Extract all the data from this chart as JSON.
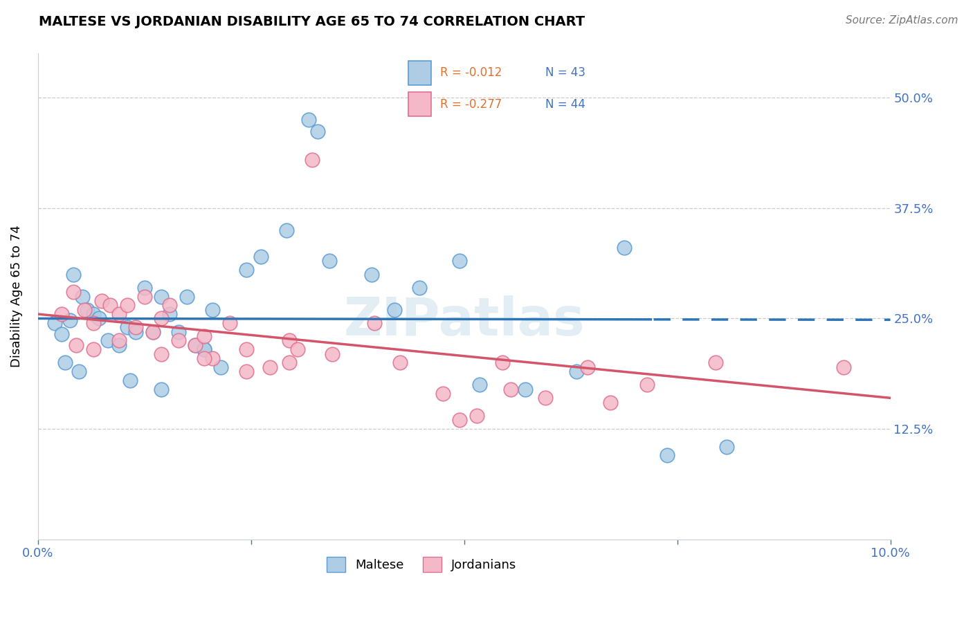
{
  "title": "MALTESE VS JORDANIAN DISABILITY AGE 65 TO 74 CORRELATION CHART",
  "source": "Source: ZipAtlas.com",
  "ylabel": "Disability Age 65 to 74",
  "xlim": [
    0.0,
    10.0
  ],
  "ylim": [
    0.0,
    55.0
  ],
  "ytick_vals": [
    0.0,
    12.5,
    25.0,
    37.5,
    50.0
  ],
  "ytick_labels": [
    "",
    "12.5%",
    "25.0%",
    "37.5%",
    "50.0%"
  ],
  "xtick_vals": [
    0.0,
    2.5,
    5.0,
    7.5,
    10.0
  ],
  "xtick_labels": [
    "0.0%",
    "",
    "",
    "",
    "10.0%"
  ],
  "blue_face_color": "#aecde4",
  "blue_edge_color": "#5b9bd5",
  "blue_line_color": "#2e75b6",
  "pink_face_color": "#f4b8c8",
  "pink_edge_color": "#e07090",
  "pink_line_color": "#d4546a",
  "blue_R": -0.012,
  "blue_N": 43,
  "pink_R": -0.277,
  "pink_N": 44,
  "legend_label_blue": "Maltese",
  "legend_label_pink": "Jordanians",
  "watermark": "ZIPatlas",
  "r_color": "#e07030",
  "n_color": "#4472c4",
  "axis_label_color": "#4472c4",
  "blue_line_dash_start": 7.2,
  "blue_scatter_x": [
    3.18,
    3.28,
    0.2,
    0.28,
    0.38,
    0.42,
    0.52,
    0.58,
    0.65,
    0.72,
    0.82,
    0.95,
    1.05,
    1.15,
    1.25,
    1.35,
    1.45,
    1.55,
    1.65,
    1.75,
    1.85,
    1.95,
    2.05,
    2.15,
    2.45,
    2.62,
    2.92,
    3.42,
    3.92,
    4.18,
    4.48,
    4.95,
    5.18,
    5.72,
    6.32,
    6.88,
    7.38,
    8.08,
    0.32,
    0.48,
    1.08,
    1.45,
    1.95
  ],
  "blue_scatter_y": [
    47.5,
    46.2,
    24.5,
    23.2,
    24.8,
    30.0,
    27.5,
    26.0,
    25.5,
    25.0,
    22.5,
    22.0,
    24.0,
    23.5,
    28.5,
    23.5,
    27.5,
    25.5,
    23.5,
    27.5,
    22.0,
    21.5,
    26.0,
    19.5,
    30.5,
    32.0,
    35.0,
    31.5,
    30.0,
    26.0,
    28.5,
    31.5,
    17.5,
    17.0,
    19.0,
    33.0,
    9.5,
    10.5,
    20.0,
    19.0,
    18.0,
    17.0,
    21.5
  ],
  "pink_scatter_x": [
    3.22,
    0.28,
    0.42,
    0.55,
    0.65,
    0.75,
    0.85,
    0.95,
    1.05,
    1.15,
    1.25,
    1.35,
    1.45,
    1.55,
    1.65,
    1.85,
    1.95,
    2.05,
    2.25,
    2.45,
    2.72,
    2.95,
    3.05,
    3.45,
    3.95,
    4.25,
    4.75,
    4.95,
    5.45,
    5.55,
    5.95,
    6.45,
    7.15,
    7.95,
    9.45,
    0.45,
    0.65,
    0.95,
    1.45,
    1.95,
    2.45,
    2.95,
    5.15,
    6.72
  ],
  "pink_scatter_y": [
    43.0,
    25.5,
    28.0,
    26.0,
    24.5,
    27.0,
    26.5,
    25.5,
    26.5,
    24.0,
    27.5,
    23.5,
    25.0,
    26.5,
    22.5,
    22.0,
    23.0,
    20.5,
    24.5,
    21.5,
    19.5,
    22.5,
    21.5,
    21.0,
    24.5,
    20.0,
    16.5,
    13.5,
    20.0,
    17.0,
    16.0,
    19.5,
    17.5,
    20.0,
    19.5,
    22.0,
    21.5,
    22.5,
    21.0,
    20.5,
    19.0,
    20.0,
    14.0,
    15.5
  ]
}
